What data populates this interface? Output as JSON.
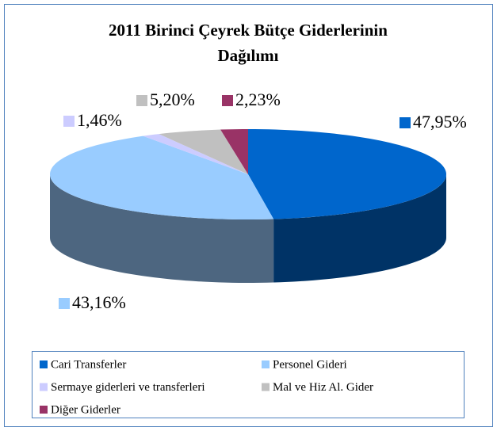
{
  "chart_data": {
    "type": "pie3d",
    "title": "2011 Birinci Çeyrek Bütçe Giderlerinin Dağılımı",
    "categories": [
      "Cari Transferler",
      "Personel Gideri",
      "Sermaye giderleri ve transferleri",
      "Mal ve Hiz Al. Gider",
      "Diğer Giderler"
    ],
    "values": [
      47.95,
      43.16,
      1.46,
      5.2,
      2.23
    ],
    "value_labels": [
      "47,95%",
      "43,16%",
      "1,46%",
      "5,20%",
      "2,23%"
    ],
    "colors": [
      "#0066cc",
      "#99ccff",
      "#ccccff",
      "#c0c0c0",
      "#993366"
    ],
    "legend": "bottom"
  }
}
